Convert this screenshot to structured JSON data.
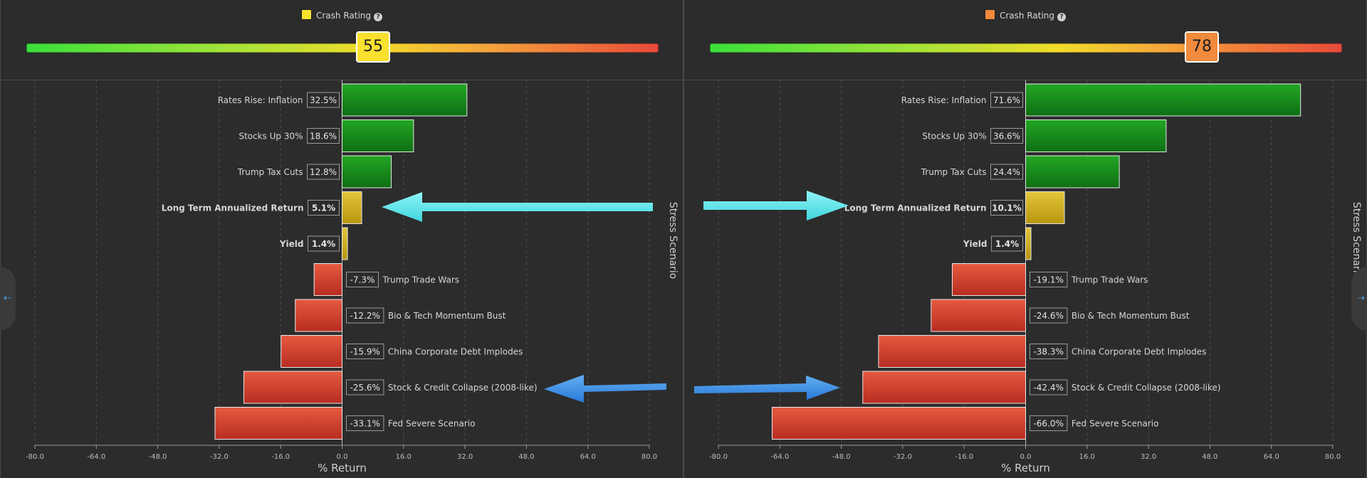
{
  "icons": {
    "help": "help-circle-icon",
    "left_nav": "arrow-left-icon",
    "right_nav": "arrow-right-icon"
  },
  "colors": {
    "positive": "#1c9a1c",
    "highlight": "#d2b51e",
    "negative": "#d8412c",
    "arrow_cyan": "#5fe9ee",
    "arrow_blue": "#3b8ee8"
  },
  "left_panel": {
    "rating_label": "Crash Rating",
    "rating_value": "55",
    "rating_color": "#f9e12e",
    "help_glyph": "?"
  },
  "right_panel": {
    "rating_label": "Crash Rating",
    "rating_value": "78",
    "rating_color": "#f08a3c",
    "help_glyph": "?"
  },
  "nav": {
    "left_glyph": "⇠",
    "right_glyph": "⇢"
  },
  "chart_data": [
    {
      "type": "bar",
      "orientation": "horizontal",
      "categories": [
        "Rates Rise: Inflation",
        "Stocks Up 30%",
        "Trump Tax Cuts",
        "Long Term Annualized Return",
        "Yield",
        "Trump Trade Wars",
        "Bio & Tech Momentum Bust",
        "China Corporate Debt Implodes",
        "Stock & Credit Collapse (2008-like)",
        "Fed Severe Scenario"
      ],
      "values": [
        32.5,
        18.6,
        12.8,
        5.1,
        1.4,
        -7.3,
        -12.2,
        -15.9,
        -25.6,
        -33.1
      ],
      "value_labels": [
        "32.5%",
        "18.6%",
        "12.8%",
        "5.1%",
        "1.4%",
        "-7.3%",
        "-12.2%",
        "-15.9%",
        "-25.6%",
        "-33.1%"
      ],
      "bold_categories": [
        "Long Term Annualized Return",
        "Yield"
      ],
      "xlabel": "% Return",
      "ylabel": "Stress Scenario",
      "xlim": [
        -80,
        80
      ],
      "xticks": [
        -80,
        -64,
        -48,
        -32,
        -16,
        0,
        16,
        32,
        48,
        64,
        80
      ],
      "xtick_labels": [
        "-80.0",
        "-64.0",
        "-48.0",
        "-32.0",
        "-16.0",
        "0.0",
        "16.0",
        "32.0",
        "48.0",
        "64.0",
        "80.0"
      ],
      "grid": true
    },
    {
      "type": "bar",
      "orientation": "horizontal",
      "categories": [
        "Rates Rise: Inflation",
        "Stocks Up 30%",
        "Trump Tax Cuts",
        "Long Term Annualized Return",
        "Yield",
        "Trump Trade Wars",
        "Bio & Tech Momentum Bust",
        "China Corporate Debt Implodes",
        "Stock & Credit Collapse (2008-like)",
        "Fed Severe Scenario"
      ],
      "values": [
        71.6,
        36.6,
        24.4,
        10.1,
        1.4,
        -19.1,
        -24.6,
        -38.3,
        -42.4,
        -66.0
      ],
      "value_labels": [
        "71.6%",
        "36.6%",
        "24.4%",
        "10.1%",
        "1.4%",
        "-19.1%",
        "-24.6%",
        "-38.3%",
        "-42.4%",
        "-66.0%"
      ],
      "bold_categories": [
        "Long Term Annualized Return",
        "Yield"
      ],
      "xlabel": "% Return",
      "ylabel": "Stress Scenario",
      "xlim": [
        -80,
        80
      ],
      "xticks": [
        -80,
        -64,
        -48,
        -32,
        -16,
        0,
        16,
        32,
        48,
        64,
        80
      ],
      "xtick_labels": [
        "-80.0",
        "-64.0",
        "-48.0",
        "-32.0",
        "-16.0",
        "0.0",
        "16.0",
        "32.0",
        "48.0",
        "64.0",
        "80.0"
      ],
      "grid": true
    }
  ]
}
